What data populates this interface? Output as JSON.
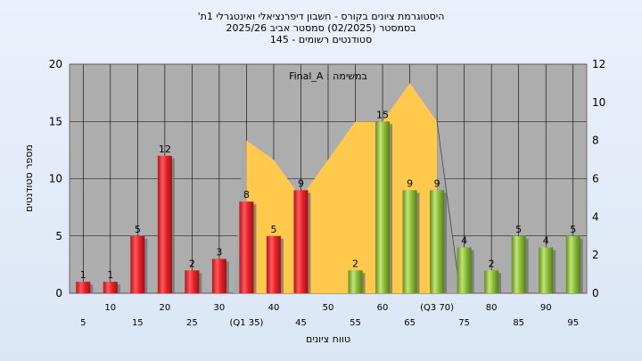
{
  "chart_data": {
    "type": "bar",
    "title_lines": [
      "'היסטוגרמת ציונים בקורס - חשבון דיפרנציאלי ואינטגרלי 1ת",
      "בסמסטר  (02/2025)  סמסטר אביב 2025/26",
      "סטודנטים רשומים - 145"
    ],
    "annotation": "Final_A : במשימה",
    "xlabel": "טווח ציונים",
    "ylabel": "מספר סטודנטים",
    "categories": [
      "5",
      "10",
      "15",
      "20",
      "25",
      "30",
      "35",
      "40",
      "45",
      "50",
      "55",
      "60",
      "65",
      "70",
      "75",
      "80",
      "85",
      "90",
      "95"
    ],
    "category_labels": [
      "5",
      "10",
      "15",
      "20",
      "25",
      "30",
      "(Q1 35)",
      "40",
      "45",
      "50",
      "55",
      "60",
      "65",
      "(Q3 70)",
      "75",
      "80",
      "85",
      "90",
      "95"
    ],
    "values": [
      1,
      1,
      5,
      12,
      2,
      3,
      8,
      5,
      9,
      0,
      2,
      15,
      9,
      9,
      4,
      2,
      5,
      4,
      5
    ],
    "value_labels": [
      "1",
      "1",
      "5",
      "12",
      "2",
      "3",
      "8",
      "5",
      "9",
      "",
      "2",
      "15",
      "9",
      "9",
      "4",
      "2",
      "5",
      "4",
      "5"
    ],
    "bar_groups": [
      "red",
      "red",
      "red",
      "red",
      "red",
      "red",
      "red",
      "red",
      "red",
      "red",
      "green",
      "green",
      "green",
      "green",
      "green",
      "green",
      "green",
      "green",
      "green"
    ],
    "area_series": {
      "x": [
        35,
        40,
        45,
        50,
        55,
        60,
        65,
        70
      ],
      "y": [
        8,
        7,
        5,
        7,
        9,
        9,
        11,
        9
      ]
    },
    "ylim_left": [
      0,
      20
    ],
    "yticks_left": [
      0,
      5,
      10,
      15,
      20
    ],
    "ylim_right": [
      0,
      12
    ],
    "yticks_right": [
      0,
      2,
      4,
      6,
      8,
      10,
      12
    ],
    "grid": true,
    "colors": {
      "red": "#e8252b",
      "green": "#8fbf3a",
      "area": "#ffc94d",
      "area_shadow": "#a9a9a9",
      "plot_bg": "#adadad",
      "grid": "#000000"
    }
  }
}
